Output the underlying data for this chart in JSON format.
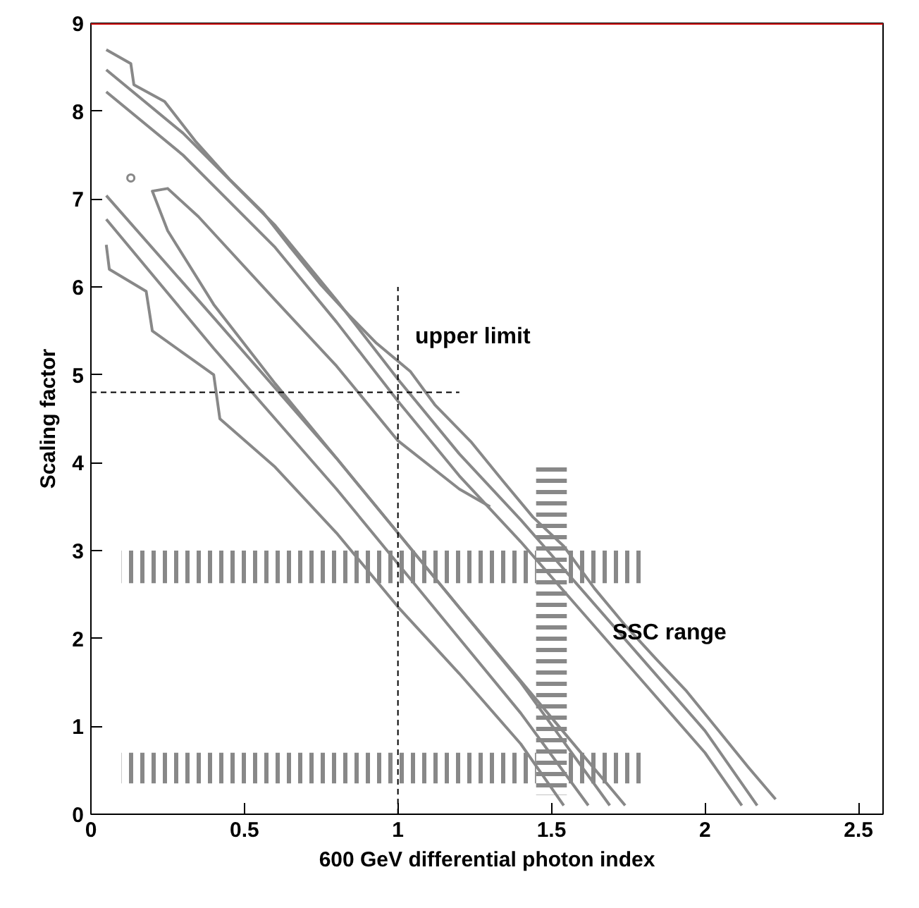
{
  "chart_data": {
    "type": "line",
    "xlabel": "600 GeV differential photon index",
    "ylabel": "Scaling factor",
    "xlim": [
      0,
      2.58
    ],
    "ylim": [
      0,
      9
    ],
    "xticks": [
      0,
      0.5,
      1,
      1.5,
      2,
      2.5
    ],
    "yticks": [
      0,
      1,
      2,
      3,
      4,
      5,
      6,
      7,
      8,
      9
    ],
    "grid": false,
    "marker": "none",
    "line_style": "solid",
    "series": [
      {
        "color": "#888888",
        "x": [
          0.05,
          0.13,
          0.14,
          0.24,
          0.34,
          0.45,
          0.56,
          0.65,
          0.75,
          0.84,
          0.93,
          1.04,
          1.12,
          1.24,
          1.34,
          1.44,
          1.54,
          1.64,
          1.74,
          1.84,
          1.94,
          2.04,
          2.14,
          2.23
        ],
        "values": [
          8.7,
          8.54,
          8.3,
          8.11,
          7.66,
          7.23,
          6.85,
          6.45,
          6.02,
          5.68,
          5.36,
          5.04,
          4.66,
          4.23,
          3.8,
          3.38,
          3.05,
          2.57,
          2.15,
          1.77,
          1.4,
          0.97,
          0.54,
          0.17
        ]
      },
      {
        "color": "#888888",
        "x": [
          0.05,
          0.3,
          0.6,
          0.8,
          1.0,
          1.2,
          1.4,
          1.6,
          1.8,
          2.0,
          2.17
        ],
        "values": [
          8.47,
          7.75,
          6.7,
          5.85,
          4.95,
          4.1,
          3.35,
          2.55,
          1.75,
          0.95,
          0.1
        ]
      },
      {
        "color": "#888888",
        "x": [
          0.05,
          0.3,
          0.6,
          0.8,
          1.0,
          1.2,
          1.4,
          1.6,
          1.8,
          2.0,
          2.12
        ],
        "values": [
          8.22,
          7.5,
          6.45,
          5.6,
          4.7,
          3.85,
          3.1,
          2.3,
          1.5,
          0.7,
          0.1
        ]
      },
      {
        "color": "#888888",
        "x": [
          1.74,
          1.5,
          1.2,
          1.0,
          0.8,
          0.6,
          0.4,
          0.25,
          0.2,
          0.25,
          0.35,
          0.6,
          0.8,
          1.0,
          1.2,
          1.3
        ],
        "values": [
          0.1,
          1.1,
          2.35,
          3.2,
          4.05,
          4.9,
          5.8,
          6.64,
          7.09,
          7.12,
          6.8,
          5.85,
          5.1,
          4.25,
          3.7,
          3.5
        ]
      },
      {
        "color": "#888888",
        "x": [
          0.05,
          0.4,
          0.8,
          1.0,
          1.2,
          1.4,
          1.69
        ],
        "values": [
          7.04,
          5.65,
          4.05,
          3.2,
          2.35,
          1.5,
          0.1
        ]
      },
      {
        "color": "#888888",
        "x": [
          0.05,
          0.4,
          0.8,
          1.0,
          1.2,
          1.4,
          1.62
        ],
        "values": [
          6.77,
          5.3,
          3.7,
          2.85,
          2.0,
          1.15,
          0.1
        ]
      },
      {
        "color": "#888888",
        "x": [
          0.05,
          0.06,
          0.18,
          0.2,
          0.4,
          0.42,
          0.6,
          0.8,
          1.0,
          1.2,
          1.4,
          1.54
        ],
        "values": [
          6.48,
          6.2,
          5.95,
          5.5,
          5.0,
          4.5,
          3.95,
          3.2,
          2.36,
          1.6,
          0.8,
          0.1
        ]
      },
      {
        "type": "scatter",
        "marker": "circle",
        "color": "#888888",
        "x": [
          0.13
        ],
        "values": [
          7.24
        ]
      },
      {
        "type": "area",
        "color": "#888888",
        "x": [
          0.1,
          0.1,
          1.8,
          1.8
        ],
        "values": [
          2.63,
          3.0,
          3.0,
          2.63
        ]
      },
      {
        "type": "area",
        "color": "#888888",
        "x": [
          0.1,
          0.1,
          1.8,
          1.8
        ],
        "values": [
          0.35,
          0.7,
          0.7,
          0.35
        ]
      },
      {
        "type": "area",
        "color": "#888888",
        "x": [
          1.45,
          1.45,
          1.55,
          1.55
        ],
        "values": [
          0.22,
          3.98,
          3.98,
          0.22
        ]
      },
      {
        "color": "#000000",
        "line_style": "dashed",
        "x": [
          1,
          1
        ],
        "values": [
          0,
          6
        ]
      },
      {
        "color": "#000000",
        "line_style": "dashed",
        "x": [
          0,
          1.2
        ],
        "values": [
          4.8,
          4.8
        ]
      }
    ],
    "ref_lines": [
      {
        "axis": "y",
        "value": 9,
        "color": "#cc0000"
      }
    ],
    "annotations": [
      "upper limit",
      "SSC range"
    ]
  }
}
